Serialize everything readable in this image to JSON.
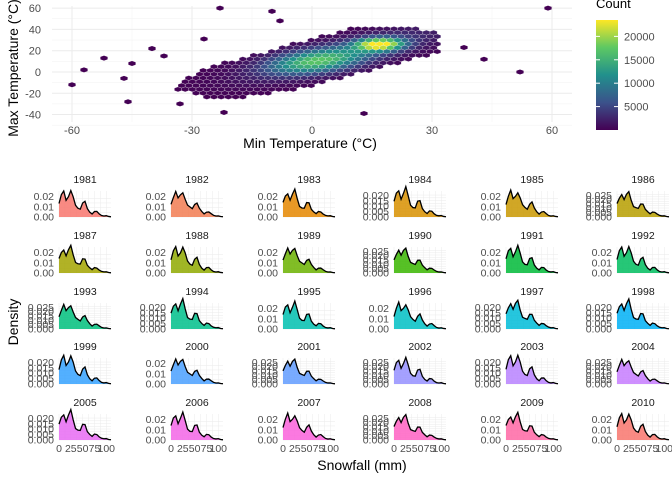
{
  "chart_data": [
    {
      "type": "heatmap",
      "subtype": "hexbin",
      "xlabel": "Min Temperature (°C)",
      "ylabel": "Max Temperature (°C)",
      "xlim": [
        -65,
        65
      ],
      "ylim": [
        -47,
        62
      ],
      "x_ticks": [
        -60,
        -30,
        0,
        30,
        60
      ],
      "y_ticks": [
        -40,
        -20,
        0,
        20,
        40,
        60
      ],
      "x_tick_labels": [
        "-60",
        "-30",
        "0",
        "30",
        "60"
      ],
      "y_tick_labels": [
        "-40",
        "-20",
        "0",
        "20",
        "40",
        "60"
      ],
      "legend": {
        "title": "Count",
        "placement": "right",
        "ticks": [
          5000,
          10000,
          15000,
          20000
        ],
        "tick_labels": [
          "5000",
          "10000",
          "15000",
          "20000"
        ],
        "range": [
          0,
          23500
        ],
        "colors": [
          "#440154",
          "#3b528b",
          "#21908c",
          "#5dc863",
          "#fde725"
        ]
      },
      "points": [
        [
          -60,
          -12
        ],
        [
          -57,
          2
        ],
        [
          -52,
          13
        ],
        [
          -47,
          -6
        ],
        [
          -45,
          8
        ],
        [
          -46,
          -28
        ],
        [
          -40,
          22
        ],
        [
          -37,
          15
        ],
        [
          -33,
          -30
        ],
        [
          -27,
          31
        ],
        [
          -23,
          60
        ],
        [
          -10,
          57
        ],
        [
          13,
          -39
        ],
        [
          38,
          23
        ],
        [
          43,
          12
        ],
        [
          52,
          0
        ],
        [
          59,
          60
        ],
        [
          -22,
          -38
        ],
        [
          -8,
          48
        ]
      ],
      "grid": true
    },
    {
      "type": "area",
      "subtype": "faceted-density",
      "xlabel": "Snowfall (mm)",
      "ylabel": "Density",
      "xlim": [
        0,
        110
      ],
      "x_ticks": [
        0,
        25,
        50,
        75,
        100
      ],
      "x_tick_labels": [
        "0",
        "25",
        "50",
        "75",
        "100"
      ],
      "grid": true,
      "x": [
        0,
        5,
        10,
        15,
        20,
        25,
        30,
        35,
        40,
        45,
        50,
        55,
        60,
        65,
        70,
        75,
        80,
        85,
        90,
        95,
        100,
        105,
        110
      ],
      "density": [
        0.013,
        0.02,
        0.024,
        0.017,
        0.021,
        0.025,
        0.018,
        0.011,
        0.009,
        0.008,
        0.013,
        0.014,
        0.008,
        0.005,
        0.003,
        0.005,
        0.005,
        0.003,
        0.0015,
        0.001,
        0.0012,
        0.0005,
        0.0002
      ],
      "facets": [
        {
          "year": "1981",
          "color": "#f8766d",
          "y_tick_labels": [
            "0.00",
            "0.01",
            "0.02"
          ],
          "ymax": 0.025
        },
        {
          "year": "1982",
          "color": "#f27d52",
          "y_tick_labels": [
            "0.00",
            "0.01",
            "0.02"
          ],
          "ymax": 0.025
        },
        {
          "year": "1983",
          "color": "#e58700",
          "y_tick_labels": [
            "0.00",
            "0.01",
            "0.02"
          ],
          "ymax": 0.025
        },
        {
          "year": "1984",
          "color": "#d89000",
          "y_tick_labels": [
            "0.000",
            "0.005",
            "0.010",
            "0.015",
            "0.020"
          ],
          "ymax": 0.023
        },
        {
          "year": "1985",
          "color": "#c99800",
          "y_tick_labels": [
            "0.00",
            "0.01",
            "0.02"
          ],
          "ymax": 0.025
        },
        {
          "year": "1986",
          "color": "#b79f00",
          "y_tick_labels": [
            "0.000",
            "0.005",
            "0.010",
            "0.015",
            "0.020",
            "0.025"
          ],
          "ymax": 0.026
        },
        {
          "year": "1987",
          "color": "#a3a500",
          "y_tick_labels": [
            "0.00",
            "0.01",
            "0.02"
          ],
          "ymax": 0.025
        },
        {
          "year": "1988",
          "color": "#8fa900",
          "y_tick_labels": [
            "0.00",
            "0.01",
            "0.02"
          ],
          "ymax": 0.025
        },
        {
          "year": "1989",
          "color": "#6bb100",
          "y_tick_labels": [
            "0.00",
            "0.01",
            "0.02"
          ],
          "ymax": 0.025
        },
        {
          "year": "1990",
          "color": "#39b600",
          "y_tick_labels": [
            "0.000",
            "0.005",
            "0.010",
            "0.015",
            "0.020",
            "0.025"
          ],
          "ymax": 0.026
        },
        {
          "year": "1991",
          "color": "#00ba38",
          "y_tick_labels": [
            "0.00",
            "0.01",
            "0.02"
          ],
          "ymax": 0.025
        },
        {
          "year": "1992",
          "color": "#00bd5f",
          "y_tick_labels": [
            "0.00",
            "0.01",
            "0.02"
          ],
          "ymax": 0.025
        },
        {
          "year": "1993",
          "color": "#00bf7d",
          "y_tick_labels": [
            "0.000",
            "0.005",
            "0.010",
            "0.015",
            "0.020",
            "0.025"
          ],
          "ymax": 0.026
        },
        {
          "year": "1994",
          "color": "#00c08b",
          "y_tick_labels": [
            "0.000",
            "0.005",
            "0.010",
            "0.015",
            "0.020"
          ],
          "ymax": 0.023
        },
        {
          "year": "1995",
          "color": "#00c0af",
          "y_tick_labels": [
            "0.00",
            "0.01",
            "0.02"
          ],
          "ymax": 0.025
        },
        {
          "year": "1996",
          "color": "#00bfc4",
          "y_tick_labels": [
            "0.00",
            "0.01",
            "0.02"
          ],
          "ymax": 0.025
        },
        {
          "year": "1997",
          "color": "#00bcd8",
          "y_tick_labels": [
            "0.000",
            "0.005",
            "0.010",
            "0.015",
            "0.020"
          ],
          "ymax": 0.023
        },
        {
          "year": "1998",
          "color": "#00b0f6",
          "y_tick_labels": [
            "0.000",
            "0.005",
            "0.010",
            "0.015",
            "0.020"
          ],
          "ymax": 0.023
        },
        {
          "year": "1999",
          "color": "#35a2ff",
          "y_tick_labels": [
            "0.000",
            "0.005",
            "0.010",
            "0.015",
            "0.020"
          ],
          "ymax": 0.023
        },
        {
          "year": "2000",
          "color": "#4aa0ff",
          "y_tick_labels": [
            "0.00",
            "0.01",
            "0.02"
          ],
          "ymax": 0.025
        },
        {
          "year": "2001",
          "color": "#619cff",
          "y_tick_labels": [
            "0.000",
            "0.005",
            "0.010",
            "0.015",
            "0.020",
            "0.025"
          ],
          "ymax": 0.026
        },
        {
          "year": "2002",
          "color": "#9590ff",
          "y_tick_labels": [
            "0.000",
            "0.005",
            "0.010",
            "0.015",
            "0.020",
            "0.025"
          ],
          "ymax": 0.026
        },
        {
          "year": "2003",
          "color": "#b983ff",
          "y_tick_labels": [
            "0.000",
            "0.005",
            "0.010",
            "0.015",
            "0.020"
          ],
          "ymax": 0.023
        },
        {
          "year": "2004",
          "color": "#c77cff",
          "y_tick_labels": [
            "0.000",
            "0.005",
            "0.010",
            "0.015",
            "0.020",
            "0.025"
          ],
          "ymax": 0.026
        },
        {
          "year": "2005",
          "color": "#e76bf3",
          "y_tick_labels": [
            "0.000",
            "0.005",
            "0.010",
            "0.015",
            "0.020"
          ],
          "ymax": 0.023
        },
        {
          "year": "2006",
          "color": "#f365e6",
          "y_tick_labels": [
            "0.00",
            "0.01",
            "0.02"
          ],
          "ymax": 0.025
        },
        {
          "year": "2007",
          "color": "#fa62db",
          "y_tick_labels": [
            "0.00",
            "0.01",
            "0.02"
          ],
          "ymax": 0.025
        },
        {
          "year": "2008",
          "color": "#ff61c3",
          "y_tick_labels": [
            "0.000",
            "0.005",
            "0.010",
            "0.015",
            "0.020",
            "0.025"
          ],
          "ymax": 0.026
        },
        {
          "year": "2009",
          "color": "#ff67a4",
          "y_tick_labels": [
            "0.00",
            "0.01",
            "0.02"
          ],
          "ymax": 0.025
        },
        {
          "year": "2010",
          "color": "#f8766d",
          "y_tick_labels": [
            "0.00",
            "0.01",
            "0.02"
          ],
          "ymax": 0.025
        }
      ]
    }
  ]
}
